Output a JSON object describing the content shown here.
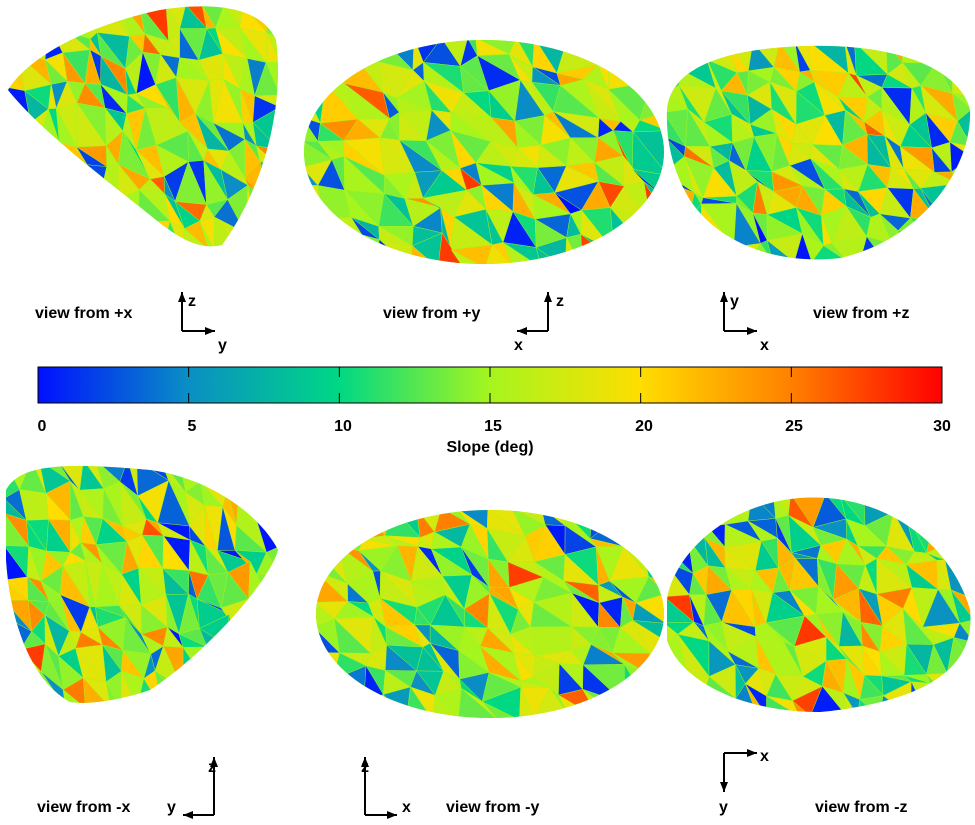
{
  "figure": {
    "views": [
      {
        "label": "view from +x",
        "axis_up": "z",
        "axis_side": "y"
      },
      {
        "label": "view from +y",
        "axis_up": "z",
        "axis_side": "x"
      },
      {
        "label": "view from +z",
        "axis_up": "y",
        "axis_side": "x"
      },
      {
        "label": "view from -x",
        "axis_up": "z",
        "axis_side": "y"
      },
      {
        "label": "view from -y",
        "axis_up": "z",
        "axis_side": "x"
      },
      {
        "label": "view from -z",
        "axis_up": "x",
        "axis_side": "y"
      }
    ],
    "colorbar": {
      "label": "Slope (deg)",
      "min": 0,
      "max": 30,
      "ticks": [
        "0",
        "5",
        "10",
        "15",
        "20",
        "25",
        "30"
      ],
      "colors": [
        "#0010ff",
        "#0a8fc4",
        "#00d884",
        "#a6f51e",
        "#ffdd00",
        "#ff8000",
        "#ff0000"
      ]
    }
  }
}
